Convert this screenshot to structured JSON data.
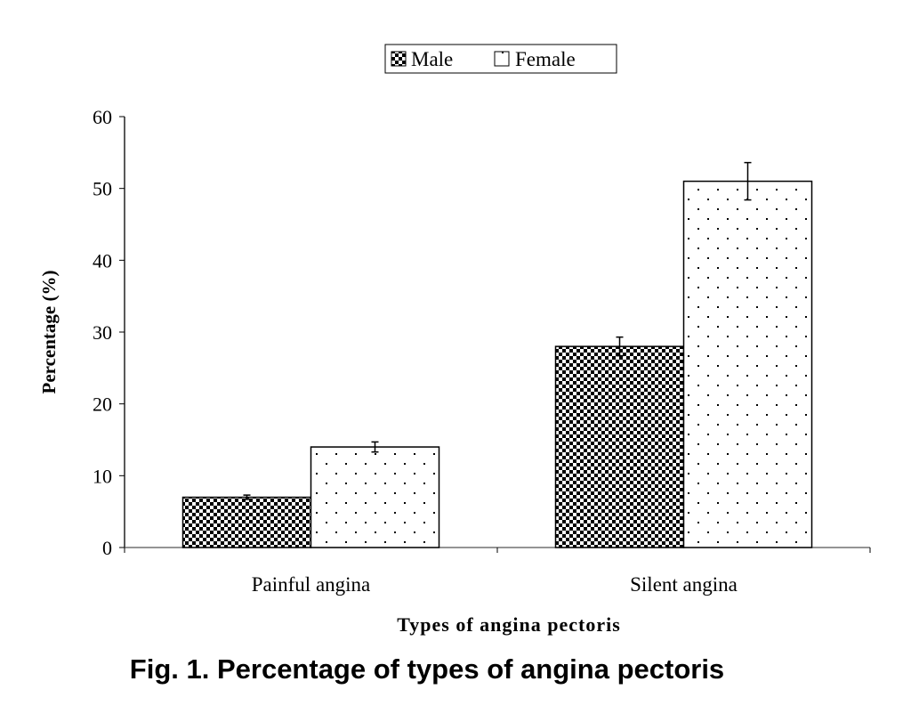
{
  "chart_data": {
    "type": "bar",
    "title": "",
    "caption": "Fig. 1. Percentage of types of angina pectoris",
    "xlabel": "Types of angina pectoris",
    "ylabel": "Percentage (%)",
    "ylim": [
      0,
      60
    ],
    "yticks": [
      "0",
      "10",
      "20",
      "30",
      "40",
      "50",
      "60"
    ],
    "categories": [
      "Painful angina",
      "Silent angina"
    ],
    "series": [
      {
        "name": "Male",
        "pattern": "checkerboard",
        "values": [
          7,
          28
        ],
        "errors": [
          0.3,
          1.3
        ]
      },
      {
        "name": "Female",
        "pattern": "dots",
        "values": [
          14,
          51
        ],
        "errors": [
          0.7,
          2.6
        ]
      }
    ],
    "legend_position": "top-center",
    "grid": false,
    "colors": {
      "ink": "#000000",
      "background": "#ffffff"
    }
  }
}
